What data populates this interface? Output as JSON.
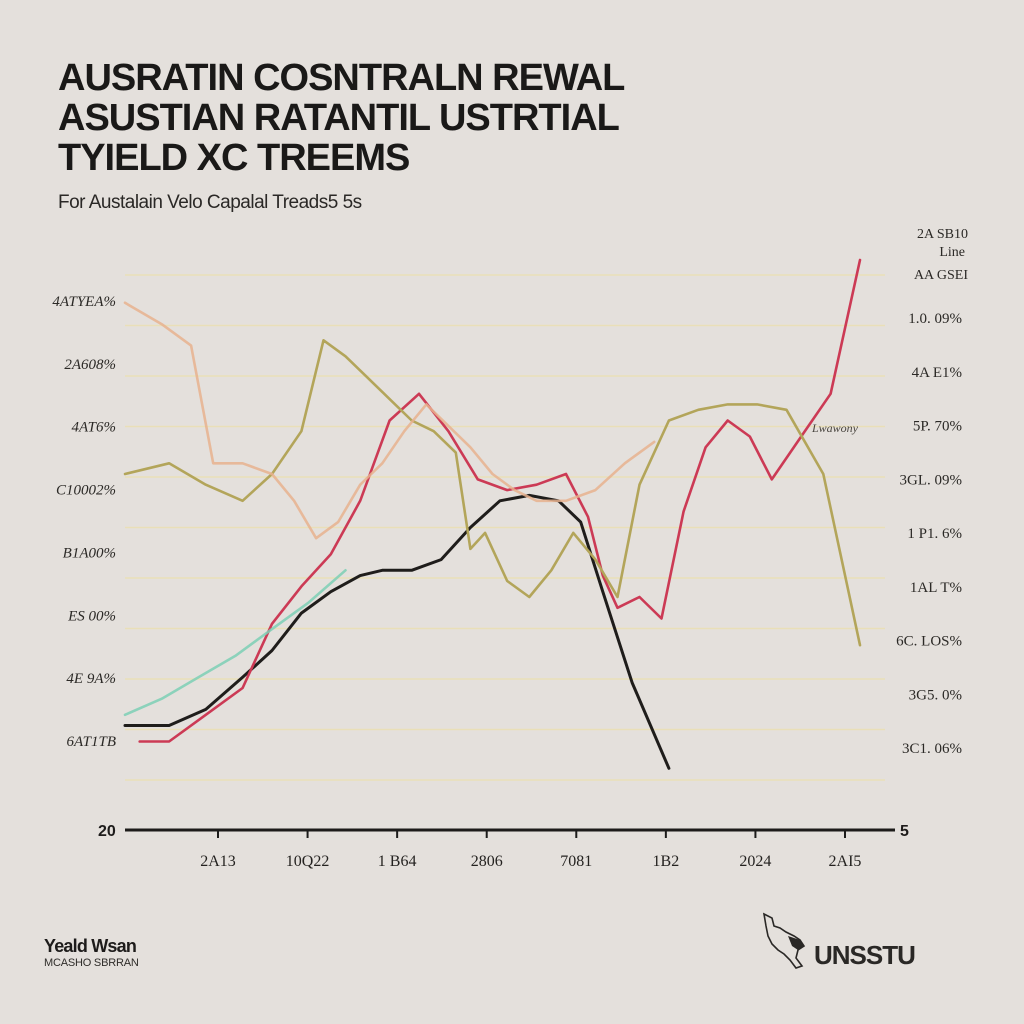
{
  "header": {
    "title_lines": [
      "AUSRATIN COSNTRALN REWAL",
      "ASUSTIAN RATANTIL USTRTIAL",
      "TYIELD XC TREEMS"
    ],
    "subtitle": "For Austalain Velo Capalal Treads5 5s"
  },
  "legend": {
    "lines": [
      "2A SB10",
      "Line",
      "AA GSEI"
    ]
  },
  "inline_label": "Lwawony",
  "footer": {
    "left_name": "Yeald Wsan",
    "left_sub": "MCASHO SBRRAN",
    "right_logo_text": "UNSSTU"
  },
  "colors": {
    "background": "#e4e0dc",
    "gridline": "#e9dfb8",
    "axis": "#1d1b1a",
    "series_black": "#1f1d1b",
    "series_red": "#cc3a55",
    "series_olive": "#b3a55a",
    "series_peach": "#e8b28e",
    "series_teal": "#7ccfb5"
  },
  "chart_data": {
    "type": "line",
    "title": "AUSRATIN COSNTRALN REWAL ASUSTIAN RATANTIL USTRTIAL TYIELD XC TREEMS",
    "subtitle": "For Austalain Velo Capalal Treads5 5s",
    "x_ticks": [
      "2A13",
      "10Q22",
      "1 B64",
      "2806",
      "7081",
      "1B2",
      "2024",
      "2AI5"
    ],
    "y_left_ticks": [
      "4ATYEA%",
      "2A608%",
      "4AT6%",
      "C10002%",
      "B1A00%",
      "ES 00%",
      "4E 9A%",
      "6AT1TB"
    ],
    "y_right_ticks": [
      "1.0. 09%",
      "4A E1%",
      "5P. 70%",
      "3GL. 09%",
      "1 P1. 6%",
      "1AL T%",
      "6C. LOS%",
      "3G5. 0%",
      "3C1. 06%"
    ],
    "y_baseline_label": "20",
    "y_right_baseline_label": "5",
    "x_range": [
      0,
      100
    ],
    "y_range": [
      0,
      100
    ],
    "grid": true,
    "legend_position": "top-right",
    "series": [
      {
        "color": "#1f1d1b",
        "x": [
          0,
          6,
          11,
          16,
          20,
          24,
          28,
          32,
          35,
          39,
          43,
          47,
          51,
          55,
          59,
          62,
          65,
          69,
          74
        ],
        "y": [
          13,
          13,
          16,
          22,
          27,
          34,
          38,
          41,
          42,
          42,
          44,
          50,
          55,
          56,
          55,
          51,
          38,
          21,
          5
        ]
      },
      {
        "color": "#cc3a55",
        "x": [
          2,
          6,
          11,
          16,
          20,
          24,
          28,
          32,
          36,
          40,
          44,
          48,
          52,
          56,
          60,
          63,
          65,
          67,
          70,
          73,
          76,
          79,
          82,
          85,
          88,
          92,
          96,
          100
        ],
        "y": [
          10,
          10,
          15,
          20,
          32,
          39,
          45,
          55,
          70,
          75,
          68,
          59,
          57,
          58,
          60,
          52,
          41,
          35,
          37,
          33,
          53,
          65,
          70,
          67,
          59,
          67,
          75,
          100
        ]
      },
      {
        "color": "#b3a55a",
        "x": [
          0,
          6,
          11,
          16,
          20,
          24,
          27,
          30,
          33,
          36,
          39,
          42,
          45,
          47,
          49,
          52,
          55,
          58,
          61,
          64,
          67,
          70,
          74,
          78,
          82,
          86,
          90,
          95,
          100
        ],
        "y": [
          60,
          62,
          58,
          55,
          60,
          68,
          85,
          82,
          78,
          74,
          70,
          68,
          64,
          46,
          49,
          40,
          37,
          42,
          49,
          44,
          37,
          58,
          70,
          72,
          73,
          73,
          72,
          60,
          28
        ]
      },
      {
        "color": "#e8b28e",
        "x": [
          0,
          5,
          9,
          12,
          16,
          20,
          23,
          26,
          29,
          32,
          35,
          38,
          41,
          44,
          47,
          50,
          53,
          56,
          60,
          64,
          68,
          72
        ],
        "y": [
          92,
          88,
          84,
          62,
          62,
          60,
          55,
          48,
          51,
          58,
          62,
          68,
          73,
          69,
          65,
          60,
          57,
          55,
          55,
          57,
          62,
          66
        ]
      },
      {
        "color": "#7ccfb5",
        "x": [
          0,
          5,
          10,
          15,
          20,
          25,
          30
        ],
        "y": [
          15,
          18,
          22,
          26,
          31,
          36,
          42
        ]
      }
    ]
  }
}
